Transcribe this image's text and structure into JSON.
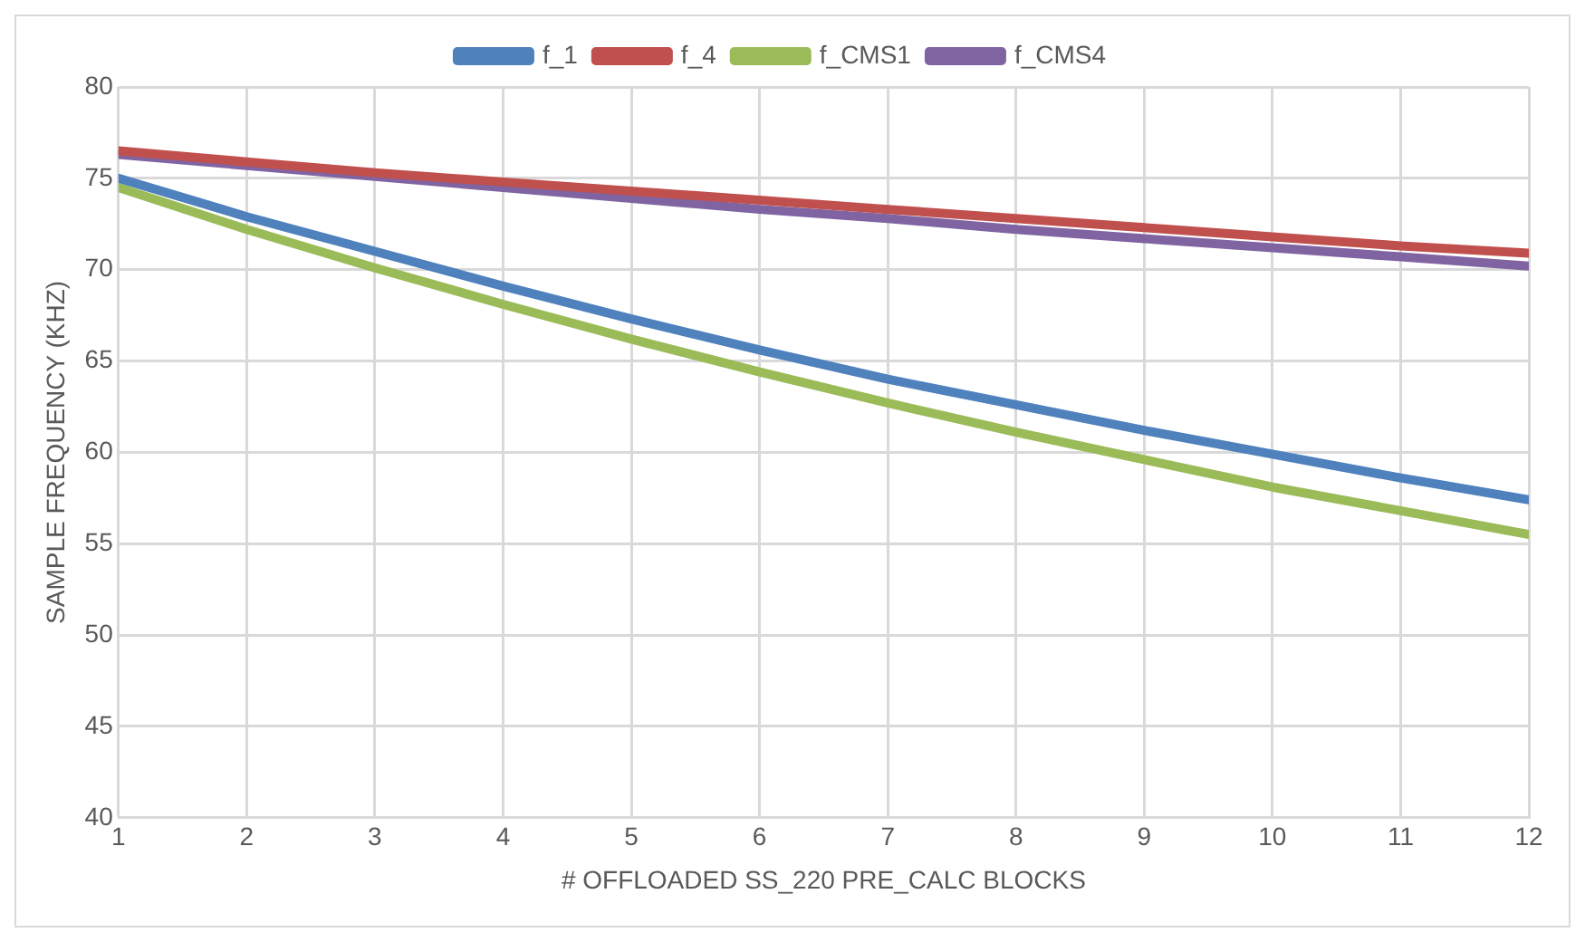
{
  "chart_data": {
    "type": "line",
    "xlabel": "# OFFLOADED SS_220 PRE_CALC BLOCKS",
    "ylabel": "SAMPLE FREQUENCY (KHZ)",
    "x": [
      1,
      2,
      3,
      4,
      5,
      6,
      7,
      8,
      9,
      10,
      11,
      12
    ],
    "xlim": [
      1,
      12
    ],
    "xticks": [
      1,
      2,
      3,
      4,
      5,
      6,
      7,
      8,
      9,
      10,
      11,
      12
    ],
    "series": [
      {
        "name": "f_1",
        "color": "#4f81bd",
        "values": [
          75.0,
          72.9,
          71.0,
          69.1,
          67.3,
          65.6,
          64.0,
          62.6,
          61.2,
          59.9,
          58.6,
          57.4
        ]
      },
      {
        "name": "f_4",
        "color": "#c0504d",
        "values": [
          76.5,
          75.9,
          75.3,
          74.8,
          74.3,
          73.8,
          73.3,
          72.8,
          72.3,
          71.8,
          71.3,
          70.9
        ]
      },
      {
        "name": "f_CMS1",
        "color": "#9bbb59",
        "values": [
          74.5,
          72.2,
          70.1,
          68.1,
          66.2,
          64.4,
          62.7,
          61.1,
          59.6,
          58.1,
          56.8,
          55.5
        ]
      },
      {
        "name": "f_CMS4",
        "color": "#8064a2",
        "values": [
          76.3,
          75.7,
          75.1,
          74.5,
          73.9,
          73.3,
          72.8,
          72.2,
          71.7,
          71.2,
          70.7,
          70.2
        ]
      }
    ],
    "ylim": [
      40,
      80
    ],
    "yticks": [
      40,
      45,
      50,
      55,
      60,
      65,
      70,
      75,
      80
    ],
    "grid": true,
    "legend": "top",
    "marker": "none",
    "line_style": "solid"
  }
}
